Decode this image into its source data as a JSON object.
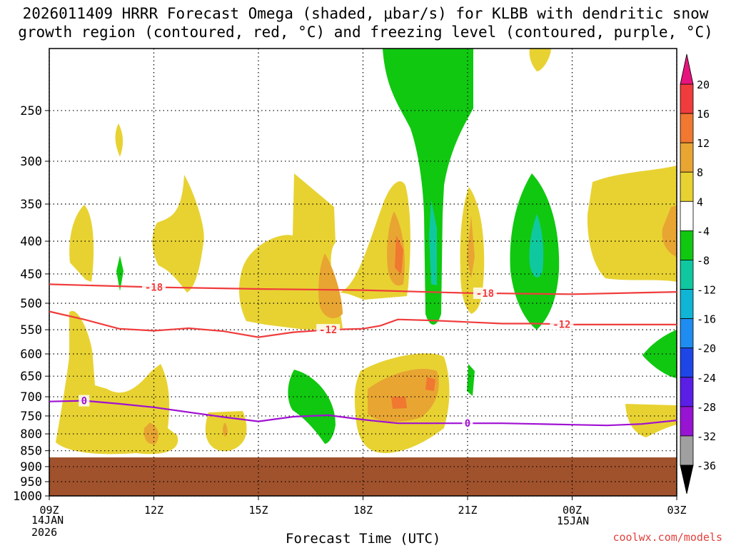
{
  "title_line1": "2026011409 HRRR Forecast Omega (shaded, μbar/s) for KLBB with dendritic snow",
  "title_line2": "growth region (contoured, red, °C) and freezing level (contoured, purple, °C)",
  "credit": "coolwx.com/models",
  "chart_data": {
    "type": "contour-cross-section",
    "title": "2026011409 HRRR Forecast Omega (shaded, μbar/s) for KLBB with dendritic snow growth region (contoured, red, °C) and freezing level (contoured, purple, °C)",
    "xlabel": "Forecast Time (UTC)",
    "ylabel": "",
    "x_ticks": [
      "09Z",
      "12Z",
      "15Z",
      "18Z",
      "21Z",
      "00Z",
      "03Z"
    ],
    "x_date_start": [
      "14JAN",
      "2026"
    ],
    "x_date_mid": "15JAN",
    "y_ticks": [
      250,
      300,
      350,
      400,
      450,
      500,
      550,
      600,
      650,
      700,
      750,
      800,
      850,
      900,
      950,
      1000
    ],
    "ylim_hPa": [
      1000,
      200
    ],
    "colorbar": {
      "levels": [
        20,
        16,
        12,
        8,
        4,
        -4,
        -8,
        -12,
        -16,
        -20,
        -24,
        -28,
        -32,
        -36
      ],
      "colors": [
        "#f03c3c",
        "#f07830",
        "#e8a532",
        "#e8d232",
        "#ffffff",
        "#10c810",
        "#10c8a0",
        "#10b4d4",
        "#1e8cf0",
        "#1e46e6",
        "#5a1ee6",
        "#9614d2",
        "#a0a0a0"
      ],
      "top_arrow_color": "#e6147d",
      "bottom_arrow_color": "#000000"
    },
    "series": [
      {
        "name": "dendritic growth -18°C",
        "color": "#f03c3c",
        "label": "-18",
        "hours": [
          0,
          3,
          6,
          9,
          12,
          15,
          18
        ],
        "pressure_hPa": [
          467,
          472,
          475,
          477,
          482,
          484,
          480
        ]
      },
      {
        "name": "dendritic growth -12°C",
        "color": "#f03c3c",
        "label": "-12",
        "hours": [
          0,
          1,
          2,
          3,
          4,
          5,
          6,
          7,
          8,
          9,
          9.5,
          10,
          11,
          12,
          13,
          14,
          15,
          16,
          17,
          18
        ],
        "pressure_hPa": [
          515,
          530,
          548,
          552,
          547,
          553,
          565,
          555,
          550,
          548,
          542,
          530,
          532,
          535,
          538,
          538,
          540,
          540,
          540,
          540
        ]
      },
      {
        "name": "freezing level 0°C",
        "color": "#a010d2",
        "label": "0",
        "hours": [
          0,
          1,
          2,
          3,
          4,
          5,
          6,
          7,
          8,
          9,
          10,
          11,
          12,
          13,
          14,
          15,
          16,
          17,
          18
        ],
        "pressure_hPa": [
          712,
          710,
          718,
          727,
          740,
          753,
          765,
          752,
          748,
          760,
          770,
          770,
          770,
          770,
          772,
          774,
          776,
          772,
          762
        ]
      }
    ],
    "ground_pressure_hPa": 910
  }
}
